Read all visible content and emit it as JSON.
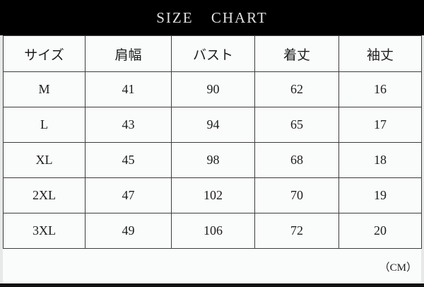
{
  "title": "SIZE CHART",
  "unit_label": "（CM）",
  "chart_data": {
    "type": "table",
    "title": "SIZE CHART",
    "unit": "CM",
    "columns": [
      "サイズ",
      "肩幅",
      "バスト",
      "着丈",
      "袖丈"
    ],
    "rows": [
      [
        "M",
        "41",
        "90",
        "62",
        "16"
      ],
      [
        "L",
        "43",
        "94",
        "65",
        "17"
      ],
      [
        "XL",
        "45",
        "98",
        "68",
        "18"
      ],
      [
        "2XL",
        "47",
        "102",
        "70",
        "19"
      ],
      [
        "3XL",
        "49",
        "106",
        "72",
        "20"
      ]
    ]
  },
  "colors": {
    "title_bar_bg": "#000000",
    "title_text": "#e0e0e0",
    "page_margin_bg": "#e7e9e9",
    "cell_bg": "#fafbfb",
    "border": "#3d3d3d",
    "cell_text": "#1c1c1c",
    "bottom_bar_bg": "#111111"
  }
}
